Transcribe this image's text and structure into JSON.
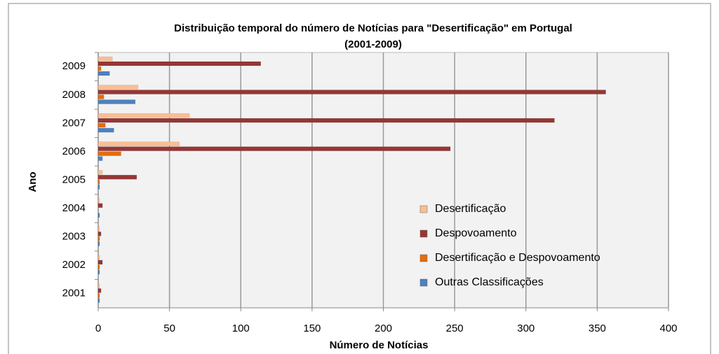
{
  "chart_data": {
    "type": "hbar",
    "title": [
      "Distribuição  temporal do número de Notícias para \"Desertificação\"  em Portugal",
      "(2001-2009)"
    ],
    "x_label": "Número de Notícias",
    "y_label": "Ano",
    "categories": [
      "2001",
      "2002",
      "2003",
      "2004",
      "2005",
      "2006",
      "2007",
      "2008",
      "2009"
    ],
    "series": [
      {
        "name": "Desertificação",
        "color": "#f9be94",
        "values": [
          1,
          1,
          1,
          1,
          3,
          57,
          64,
          28,
          10
        ]
      },
      {
        "name": "Despovoamento",
        "color": "#953735",
        "values": [
          2,
          3,
          2,
          3,
          27,
          247,
          320,
          356,
          114
        ]
      },
      {
        "name": "Desertificação e Despovoamento",
        "color": "#e46c0a",
        "values": [
          1,
          1,
          1,
          0,
          1,
          16,
          5,
          4,
          2
        ]
      },
      {
        "name": "Outras Classificações",
        "color": "#4f81bd",
        "values": [
          1,
          1,
          1,
          1,
          1,
          3,
          11,
          26,
          8
        ]
      }
    ],
    "xlim": [
      0,
      400
    ],
    "xticks": [
      0,
      50,
      100,
      150,
      200,
      250,
      300,
      350,
      400
    ],
    "grid": true
  }
}
